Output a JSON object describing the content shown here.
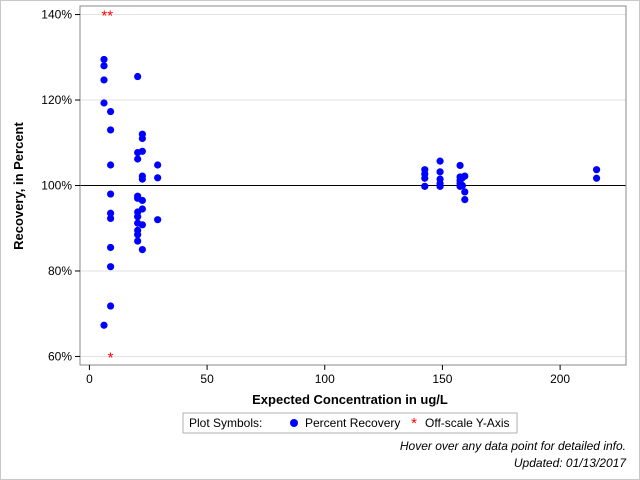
{
  "chart_data": {
    "type": "scatter",
    "xlabel": "Expected Concentration in ug/L",
    "ylabel": "Recovery, in Percent",
    "xlim": [
      -4,
      228
    ],
    "ylim": [
      58,
      142
    ],
    "x_ticks": [
      0,
      50,
      100,
      150,
      200
    ],
    "y_ticks": [
      60,
      80,
      100,
      120,
      140
    ],
    "y_tick_labels": [
      "60%",
      "80%",
      "100%",
      "120%",
      "140%"
    ],
    "reference_line_y": 100,
    "grid": true,
    "legend": {
      "placement": "bottom-center",
      "title": "Plot Symbols:",
      "entries": [
        {
          "label": "Percent Recovery",
          "marker": "circle",
          "color": "#0000ff"
        },
        {
          "label": "Off-scale Y-Axis",
          "marker": "asterisk",
          "color": "#ff0000"
        }
      ]
    },
    "series": [
      {
        "name": "Percent Recovery",
        "color": "#0000ff",
        "points": [
          [
            6.2,
            129.5
          ],
          [
            6.2,
            128
          ],
          [
            6.2,
            124.7
          ],
          [
            6.2,
            119.3
          ],
          [
            6.2,
            67.3
          ],
          [
            9,
            117.3
          ],
          [
            9,
            113
          ],
          [
            9,
            104.8
          ],
          [
            9,
            98
          ],
          [
            9,
            93.5
          ],
          [
            9,
            92.3
          ],
          [
            9,
            85.5
          ],
          [
            9,
            81
          ],
          [
            9,
            71.8
          ],
          [
            20.5,
            125.5
          ],
          [
            20.5,
            107.7
          ],
          [
            20.5,
            106.2
          ],
          [
            20.5,
            97.5
          ],
          [
            20.5,
            97
          ],
          [
            20.5,
            93.8
          ],
          [
            20.5,
            92.7
          ],
          [
            20.5,
            91.2
          ],
          [
            20.5,
            89.5
          ],
          [
            20.5,
            88.5
          ],
          [
            20.5,
            87
          ],
          [
            22.5,
            112
          ],
          [
            22.5,
            111
          ],
          [
            22.5,
            108
          ],
          [
            22.5,
            102.2
          ],
          [
            22.5,
            101.5
          ],
          [
            22.5,
            96.5
          ],
          [
            22.5,
            94.5
          ],
          [
            22.5,
            90.8
          ],
          [
            22.5,
            85
          ],
          [
            29,
            104.8
          ],
          [
            29,
            101.8
          ],
          [
            29,
            92
          ],
          [
            142.5,
            103.7
          ],
          [
            142.5,
            102.7
          ],
          [
            142.5,
            101.7
          ],
          [
            142.5,
            99.8
          ],
          [
            149,
            105.7
          ],
          [
            149,
            103.2
          ],
          [
            149,
            101.5
          ],
          [
            149,
            100.5
          ],
          [
            149,
            99.8
          ],
          [
            157.5,
            104.7
          ],
          [
            157.5,
            102
          ],
          [
            157.5,
            101.2
          ],
          [
            157.5,
            100.5
          ],
          [
            157.5,
            99.8
          ],
          [
            158.5,
            101.8
          ],
          [
            158.5,
            100
          ],
          [
            159.5,
            102.2
          ],
          [
            159.5,
            98.5
          ],
          [
            159.5,
            96.7
          ],
          [
            215.5,
            103.7
          ],
          [
            215.5,
            101.7
          ]
        ]
      },
      {
        "name": "Off-scale Y-Axis",
        "color": "#ff0000",
        "points": [
          [
            6.3,
            140
          ],
          [
            8.8,
            140
          ],
          [
            9,
            60
          ]
        ]
      }
    ]
  },
  "footer": {
    "hover_note": "Hover over any data point for detailed info.",
    "updated": "Updated: 01/13/2017"
  }
}
